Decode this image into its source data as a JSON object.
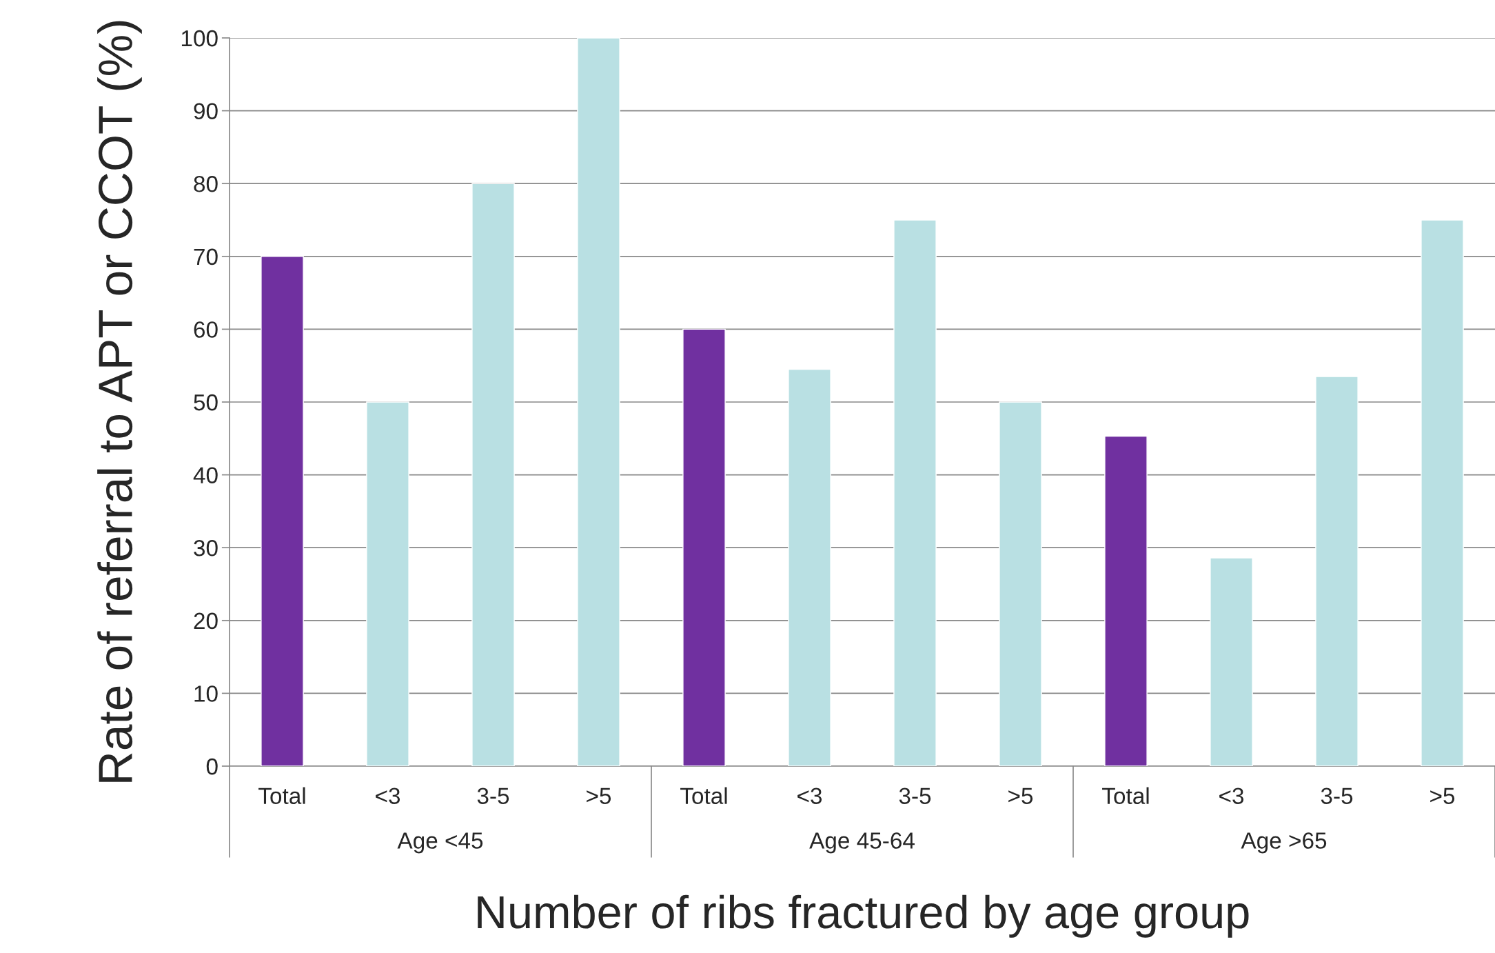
{
  "chart_data": {
    "type": "bar",
    "categories": [
      "Total",
      "<3",
      "3-5",
      ">5",
      "Total",
      "<3",
      "3-5",
      ">5",
      "Total",
      "<3",
      "3-5",
      ">5"
    ],
    "values": [
      70,
      50,
      80,
      100,
      60,
      54.5,
      75,
      50,
      45.3,
      28.6,
      53.5,
      75
    ],
    "colors": [
      "#7030a0",
      "#b9e0e3",
      "#b9e0e3",
      "#b9e0e3",
      "#7030a0",
      "#b9e0e3",
      "#b9e0e3",
      "#b9e0e3",
      "#7030a0",
      "#b9e0e3",
      "#b9e0e3",
      "#b9e0e3"
    ],
    "annotations": [
      "Age <45",
      "Age 45-64",
      "Age >65"
    ],
    "xlabel": "Number of ribs fractured by age group",
    "ylabel": "Rate of referral to APT or CCOT (%)",
    "ylim": [
      0,
      100
    ],
    "yticks": [
      0,
      10,
      20,
      30,
      40,
      50,
      60,
      70,
      80,
      90,
      100
    ],
    "grid": "y",
    "legend": false
  }
}
